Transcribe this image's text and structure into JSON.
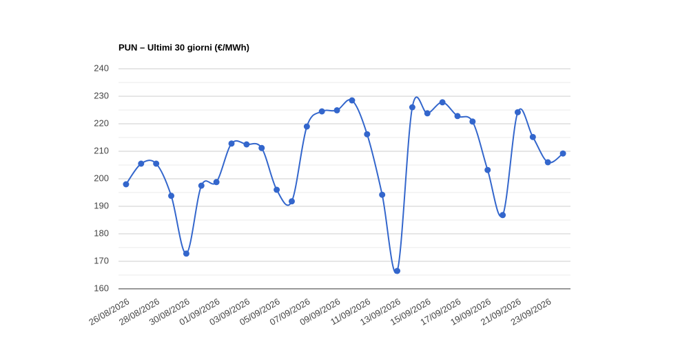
{
  "chart_data": {
    "type": "line",
    "title": "PUN – Ultimi 30 giorni (€/MWh)",
    "categories": [
      "26/08/2026",
      null,
      "28/08/2026",
      null,
      "30/08/2026",
      null,
      "01/09/2026",
      null,
      "03/09/2026",
      null,
      "05/09/2026",
      null,
      "07/09/2026",
      null,
      "09/09/2026",
      null,
      "11/09/2026",
      null,
      "13/09/2026",
      null,
      "15/09/2026",
      null,
      "17/09/2026",
      null,
      "19/09/2026",
      null,
      "21/09/2026",
      null,
      "23/09/2026",
      null
    ],
    "series": [
      {
        "name": "PUN",
        "color": "#3366cc",
        "values": [
          198,
          205.5,
          205.5,
          193.8,
          172.8,
          197.5,
          198.8,
          212.8,
          212.5,
          211.2,
          196,
          191.8,
          219,
          224.5,
          224.9,
          228.5,
          216.2,
          194.2,
          166.5,
          226,
          223.8,
          227.8,
          222.8,
          220.8,
          203.2,
          186.8,
          224.2,
          215.2,
          206,
          209.2
        ]
      }
    ],
    "ylim": [
      160,
      240
    ],
    "yticks": [
      160,
      170,
      180,
      190,
      200,
      210,
      220,
      230,
      240
    ],
    "grid": true,
    "curve": "smooth"
  }
}
